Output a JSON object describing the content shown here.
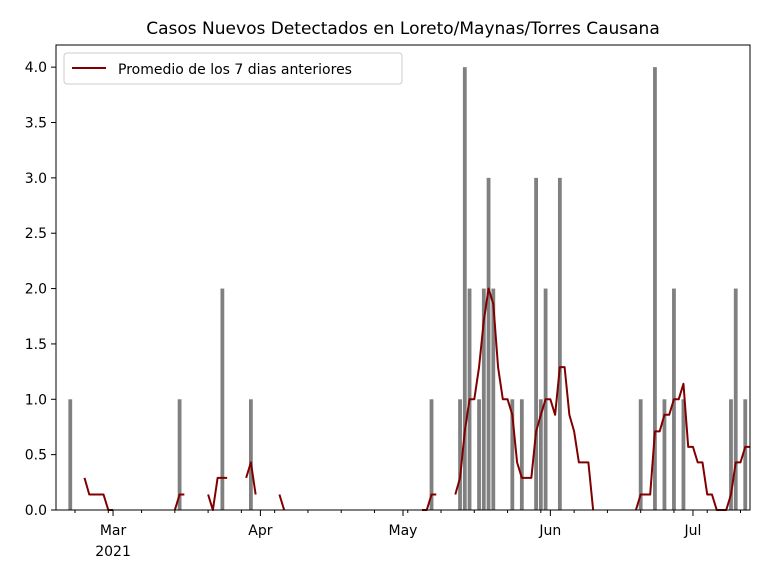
{
  "chart_data": {
    "type": "bar",
    "title": "Casos Nuevos Detectados en Loreto/Maynas/Torres Causana",
    "xlabel": "",
    "ylabel": "",
    "ylim": [
      0,
      4.2
    ],
    "yticks": [
      "0.0",
      "0.5",
      "1.0",
      "1.5",
      "2.0",
      "2.5",
      "3.0",
      "3.5",
      "4.0"
    ],
    "xlim": [
      "2021-02-17",
      "2021-07-13"
    ],
    "xticks": [
      {
        "date": "2021-03-01",
        "label": "Mar",
        "sublabel": "2021"
      },
      {
        "date": "2021-04-01",
        "label": "Apr",
        "sublabel": ""
      },
      {
        "date": "2021-05-01",
        "label": "May",
        "sublabel": ""
      },
      {
        "date": "2021-06-01",
        "label": "Jun",
        "sublabel": ""
      },
      {
        "date": "2021-07-01",
        "label": "Jul",
        "sublabel": ""
      }
    ],
    "legend": {
      "position": "top-left",
      "entries": [
        "Promedio de los 7 dias anteriores"
      ]
    },
    "grid": false,
    "colors": {
      "bars": "#808080",
      "line": "#800000"
    },
    "series": [
      {
        "name": "",
        "kind": "bar",
        "x": [
          "2021-02-20",
          "2021-03-15",
          "2021-03-24",
          "2021-03-30",
          "2021-05-07",
          "2021-05-13",
          "2021-05-14",
          "2021-05-15",
          "2021-05-17",
          "2021-05-18",
          "2021-05-19",
          "2021-05-20",
          "2021-05-24",
          "2021-05-26",
          "2021-05-29",
          "2021-05-30",
          "2021-05-31",
          "2021-06-03",
          "2021-06-20",
          "2021-06-23",
          "2021-06-25",
          "2021-06-27",
          "2021-06-29",
          "2021-07-09",
          "2021-07-10",
          "2021-07-12"
        ],
        "values": [
          1,
          1,
          2,
          1,
          1,
          1,
          4,
          2,
          1,
          2,
          3,
          2,
          1,
          1,
          3,
          1,
          2,
          3,
          1,
          4,
          1,
          2,
          1,
          1,
          2,
          1
        ]
      },
      {
        "name": "Promedio de los 7 dias anteriores",
        "kind": "line",
        "x": [
          "2021-02-23",
          "2021-02-24",
          "2021-02-25",
          "2021-02-26",
          "2021-02-27",
          "2021-02-28",
          "2021-03-01",
          "2021-03-14",
          "2021-03-15",
          "2021-03-16",
          "2021-03-21",
          "2021-03-22",
          "2021-03-23",
          "2021-03-24",
          "2021-03-25",
          "2021-03-29",
          "2021-03-30",
          "2021-03-31",
          "2021-04-05",
          "2021-04-06",
          "2021-05-05",
          "2021-05-06",
          "2021-05-07",
          "2021-05-08",
          "2021-05-12",
          "2021-05-13",
          "2021-05-14",
          "2021-05-15",
          "2021-05-16",
          "2021-05-17",
          "2021-05-18",
          "2021-05-19",
          "2021-05-20",
          "2021-05-21",
          "2021-05-22",
          "2021-05-23",
          "2021-05-24",
          "2021-05-25",
          "2021-05-26",
          "2021-05-27",
          "2021-05-28",
          "2021-05-29",
          "2021-05-30",
          "2021-05-31",
          "2021-06-01",
          "2021-06-02",
          "2021-06-03",
          "2021-06-04",
          "2021-06-05",
          "2021-06-06",
          "2021-06-07",
          "2021-06-08",
          "2021-06-09",
          "2021-06-10",
          "2021-06-19",
          "2021-06-20",
          "2021-06-21",
          "2021-06-22",
          "2021-06-23",
          "2021-06-24",
          "2021-06-25",
          "2021-06-26",
          "2021-06-27",
          "2021-06-28",
          "2021-06-29",
          "2021-06-30",
          "2021-07-01",
          "2021-07-02",
          "2021-07-03",
          "2021-07-04",
          "2021-07-05",
          "2021-07-06",
          "2021-07-07",
          "2021-07-08",
          "2021-07-09",
          "2021-07-10",
          "2021-07-11",
          "2021-07-12",
          "2021-07-13"
        ],
        "values": [
          0.29,
          0.14,
          0.14,
          0.14,
          0.14,
          0.0,
          0.0,
          0.0,
          0.14,
          0.14,
          0.14,
          0.0,
          0.29,
          0.29,
          0.29,
          0.29,
          0.43,
          0.14,
          0.14,
          0.0,
          0.0,
          0.0,
          0.14,
          0.14,
          0.14,
          0.29,
          0.71,
          1.0,
          1.0,
          1.29,
          1.71,
          2.0,
          1.86,
          1.29,
          1.0,
          1.0,
          0.86,
          0.43,
          0.29,
          0.29,
          0.29,
          0.71,
          0.86,
          1.0,
          1.0,
          0.86,
          1.29,
          1.29,
          0.86,
          0.71,
          0.43,
          0.43,
          0.43,
          0.0,
          0.0,
          0.14,
          0.14,
          0.14,
          0.71,
          0.71,
          0.86,
          0.86,
          1.0,
          1.0,
          1.14,
          0.57,
          0.57,
          0.43,
          0.43,
          0.14,
          0.14,
          0.0,
          0.0,
          0.0,
          0.14,
          0.43,
          0.43,
          0.57,
          0.57
        ]
      }
    ]
  }
}
